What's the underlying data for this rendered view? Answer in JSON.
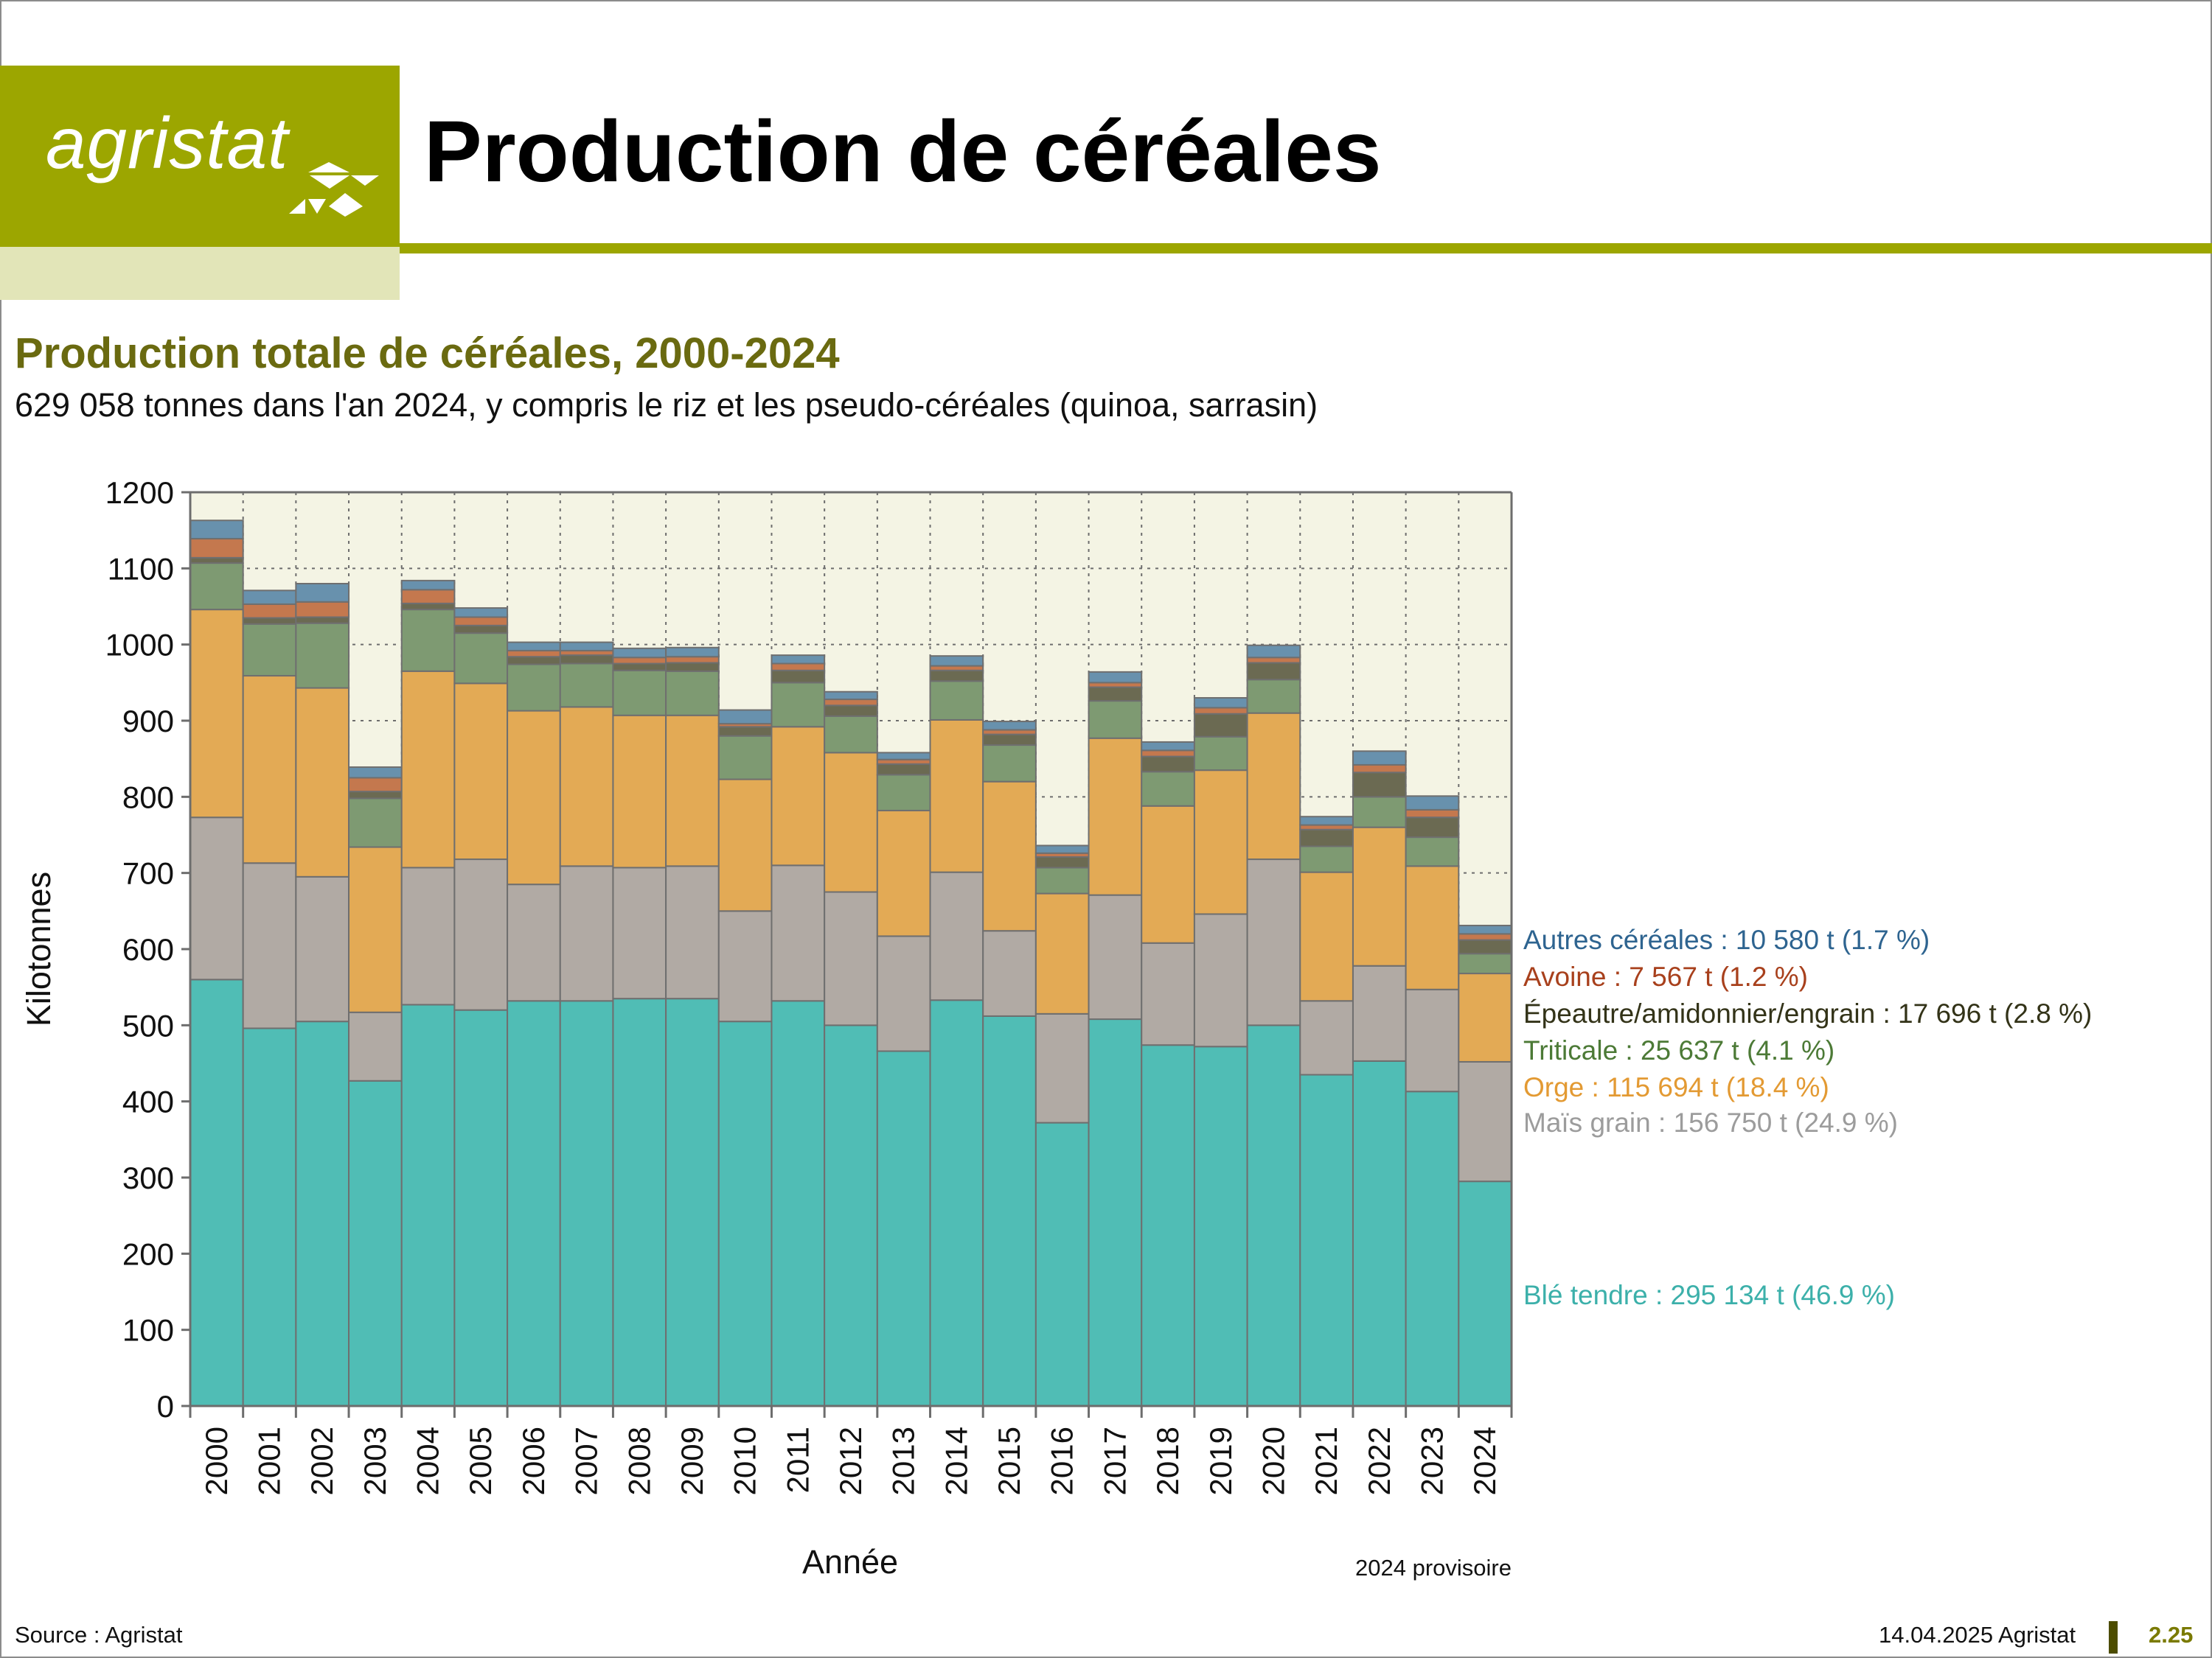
{
  "header": {
    "logo_text": "agristat",
    "title": "Production de céréales"
  },
  "chart_header": {
    "title": "Production totale de céréales, 2000-2024",
    "subtitle": "629 058 tonnes dans l'an 2024, y compris le riz et les pseudo-céréales (quinoa, sarrasin)"
  },
  "footer": {
    "source": "Source : Agristat",
    "date": "14.04.2025 Agristat",
    "page": "2.25"
  },
  "colors": {
    "ble": "#50bdb5",
    "mais": "#b1aaa4",
    "orge": "#e3aa55",
    "triticale": "#7e9a72",
    "epeautre": "#6b6a52",
    "avoine": "#c4784e",
    "autres": "#6891ad",
    "plot_bg": "#f4f4e4",
    "brand": "#9ca600"
  },
  "chart_data": {
    "type": "bar",
    "stacked": true,
    "xlabel": "Année",
    "ylabel": "Kilotonnes",
    "ylim": [
      0,
      1200
    ],
    "yticks": [
      0,
      100,
      200,
      300,
      400,
      500,
      600,
      700,
      800,
      900,
      1000,
      1100,
      1200
    ],
    "grid": true,
    "note": "2024 provisoire",
    "categories": [
      "2000",
      "2001",
      "2002",
      "2003",
      "2004",
      "2005",
      "2006",
      "2007",
      "2008",
      "2009",
      "2010",
      "2011",
      "2012",
      "2013",
      "2014",
      "2015",
      "2016",
      "2017",
      "2018",
      "2019",
      "2020",
      "2021",
      "2022",
      "2023",
      "2024"
    ],
    "series": [
      {
        "name": "Blé tendre",
        "key": "ble",
        "label": "Blé tendre : 295 134 t (46.9 %)",
        "values": [
          560,
          496,
          505,
          427,
          527,
          520,
          532,
          532,
          535,
          535,
          505,
          532,
          500,
          466,
          533,
          512,
          372,
          508,
          474,
          472,
          500,
          435,
          453,
          413,
          295
        ]
      },
      {
        "name": "Maïs grain",
        "key": "mais",
        "label": "Maïs grain : 156 750 t (24.9 %)",
        "values": [
          213,
          217,
          190,
          90,
          180,
          198,
          153,
          177,
          172,
          174,
          145,
          178,
          175,
          151,
          168,
          112,
          143,
          163,
          134,
          174,
          218,
          97,
          125,
          134,
          157
        ]
      },
      {
        "name": "Orge",
        "key": "orge",
        "label": "Orge : 115 694 t (18.4 %)",
        "values": [
          273,
          246,
          248,
          217,
          258,
          231,
          228,
          209,
          200,
          198,
          173,
          182,
          183,
          165,
          200,
          196,
          158,
          206,
          180,
          189,
          192,
          169,
          182,
          162,
          116
        ]
      },
      {
        "name": "Triticale",
        "key": "triticale",
        "label": "Triticale : 25 637 t (4.1 %)",
        "values": [
          61,
          68,
          85,
          64,
          81,
          66,
          61,
          57,
          59,
          58,
          57,
          58,
          48,
          47,
          51,
          48,
          34,
          49,
          45,
          44,
          44,
          34,
          40,
          38,
          26
        ]
      },
      {
        "name": "Épeautre/amidonnier/engrain",
        "key": "epeautre",
        "label": "Épeautre/amidonnier/engrain : 17 696 t (2.8 %)",
        "values": [
          7,
          8,
          8,
          9,
          8,
          10,
          10,
          11,
          9,
          11,
          12,
          16,
          14,
          14,
          14,
          14,
          14,
          18,
          20,
          30,
          22,
          22,
          32,
          26,
          18
        ]
      },
      {
        "name": "Avoine",
        "key": "avoine",
        "label": "Avoine : 7 567 t (1.2 %)",
        "values": [
          25,
          18,
          20,
          18,
          18,
          11,
          8,
          6,
          8,
          8,
          4,
          9,
          8,
          6,
          6,
          6,
          5,
          6,
          8,
          8,
          7,
          6,
          10,
          10,
          8
        ]
      },
      {
        "name": "Autres céréales",
        "key": "autres",
        "label": "Autres céréales : 10 580 t (1.7 %)",
        "values": [
          24,
          18,
          24,
          14,
          12,
          12,
          11,
          11,
          12,
          12,
          18,
          11,
          10,
          9,
          13,
          11,
          10,
          14,
          11,
          13,
          16,
          11,
          18,
          18,
          11
        ]
      }
    ]
  }
}
